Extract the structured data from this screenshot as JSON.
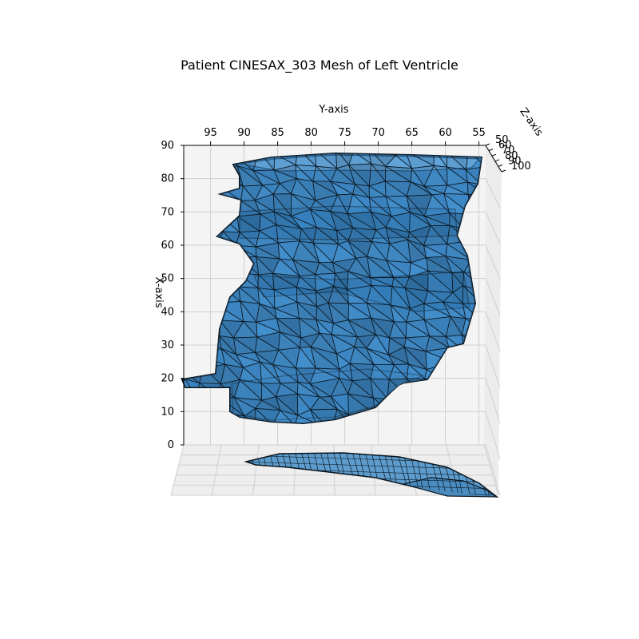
{
  "chart_data": {
    "type": "3d-surface-mesh",
    "title": "Patient CINESAX_303 Mesh of Left Ventricle",
    "xlabel": "X-axis",
    "ylabel": "Y-axis",
    "zlabel": "Z-axis",
    "x_ticks": [
      "0",
      "10",
      "20",
      "30",
      "40",
      "50",
      "60",
      "70",
      "80",
      "90"
    ],
    "y_ticks": [
      "95",
      "90",
      "85",
      "80",
      "75",
      "70",
      "65",
      "60",
      "55"
    ],
    "z_ticks": [
      "50",
      "60",
      "70",
      "80",
      "90",
      "100"
    ],
    "xlim": [
      0,
      90
    ],
    "ylim": [
      99,
      54
    ],
    "zlim": [
      50,
      100
    ],
    "grid": true,
    "legend": "none",
    "colors": {
      "face": "#4a8fc4",
      "face_light": "#6aa8d6",
      "face_dark": "#1f5f93",
      "edge": "#0d1b26",
      "pane": "#f2f2f2",
      "grid": "#c8c8c8"
    }
  }
}
